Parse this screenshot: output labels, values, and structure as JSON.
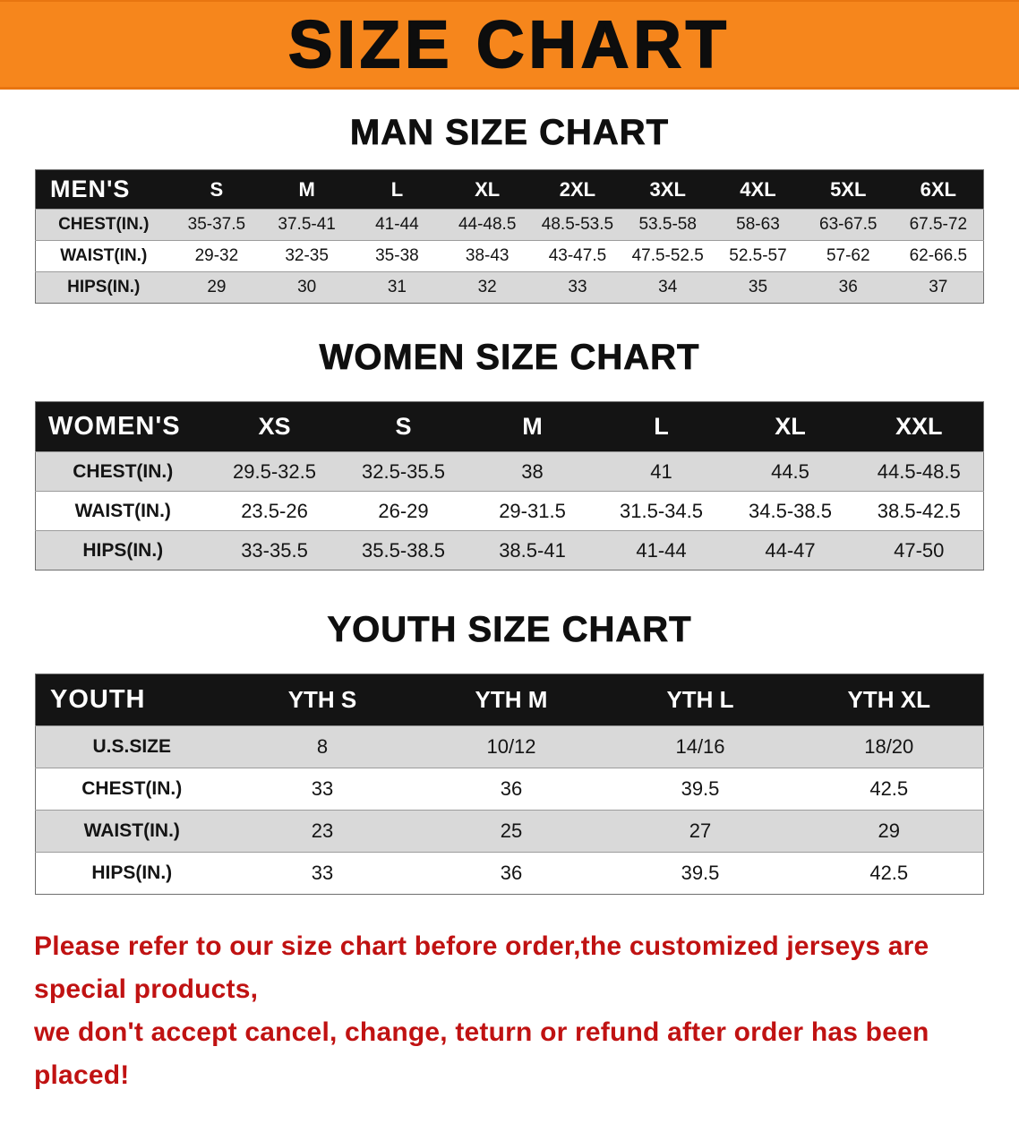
{
  "banner": {
    "title": "SIZE CHART"
  },
  "chart_data": [
    {
      "type": "table",
      "title": "MAN SIZE CHART",
      "columns": [
        "MEN'S",
        "S",
        "M",
        "L",
        "XL",
        "2XL",
        "3XL",
        "4XL",
        "5XL",
        "6XL"
      ],
      "rows": [
        [
          "CHEST(IN.)",
          "35-37.5",
          "37.5-41",
          "41-44",
          "44-48.5",
          "48.5-53.5",
          "53.5-58",
          "58-63",
          "63-67.5",
          "67.5-72"
        ],
        [
          "WAIST(IN.)",
          "29-32",
          "32-35",
          "35-38",
          "38-43",
          "43-47.5",
          "47.5-52.5",
          "52.5-57",
          "57-62",
          "62-66.5"
        ],
        [
          "HIPS(IN.)",
          "29",
          "30",
          "31",
          "32",
          "33",
          "34",
          "35",
          "36",
          "37"
        ]
      ]
    },
    {
      "type": "table",
      "title": "WOMEN SIZE CHART",
      "columns": [
        "WOMEN'S",
        "XS",
        "S",
        "M",
        "L",
        "XL",
        "XXL"
      ],
      "rows": [
        [
          "CHEST(IN.)",
          "29.5-32.5",
          "32.5-35.5",
          "38",
          "41",
          "44.5",
          "44.5-48.5"
        ],
        [
          "WAIST(IN.)",
          "23.5-26",
          "26-29",
          "29-31.5",
          "31.5-34.5",
          "34.5-38.5",
          "38.5-42.5"
        ],
        [
          "HIPS(IN.)",
          "33-35.5",
          "35.5-38.5",
          "38.5-41",
          "41-44",
          "44-47",
          "47-50"
        ]
      ]
    },
    {
      "type": "table",
      "title": "YOUTH SIZE CHART",
      "columns": [
        "YOUTH",
        "YTH S",
        "YTH M",
        "YTH L",
        "YTH XL"
      ],
      "rows": [
        [
          "U.S.SIZE",
          "8",
          "10/12",
          "14/16",
          "18/20"
        ],
        [
          "CHEST(IN.)",
          "33",
          "36",
          "39.5",
          "42.5"
        ],
        [
          "WAIST(IN.)",
          "23",
          "25",
          "27",
          "29"
        ],
        [
          "HIPS(IN.)",
          "33",
          "36",
          "39.5",
          "42.5"
        ]
      ]
    }
  ],
  "footer": {
    "line1": "Please refer to our size chart before order,the customized jerseys are special products,",
    "line2": "we don't accept cancel, change, teturn or refund after order has been placed!"
  },
  "colors": {
    "banner_bg": "#f6861c",
    "table_header_bg": "#141414",
    "row_alt": "#d9d9d9",
    "note_red": "#c01212"
  }
}
